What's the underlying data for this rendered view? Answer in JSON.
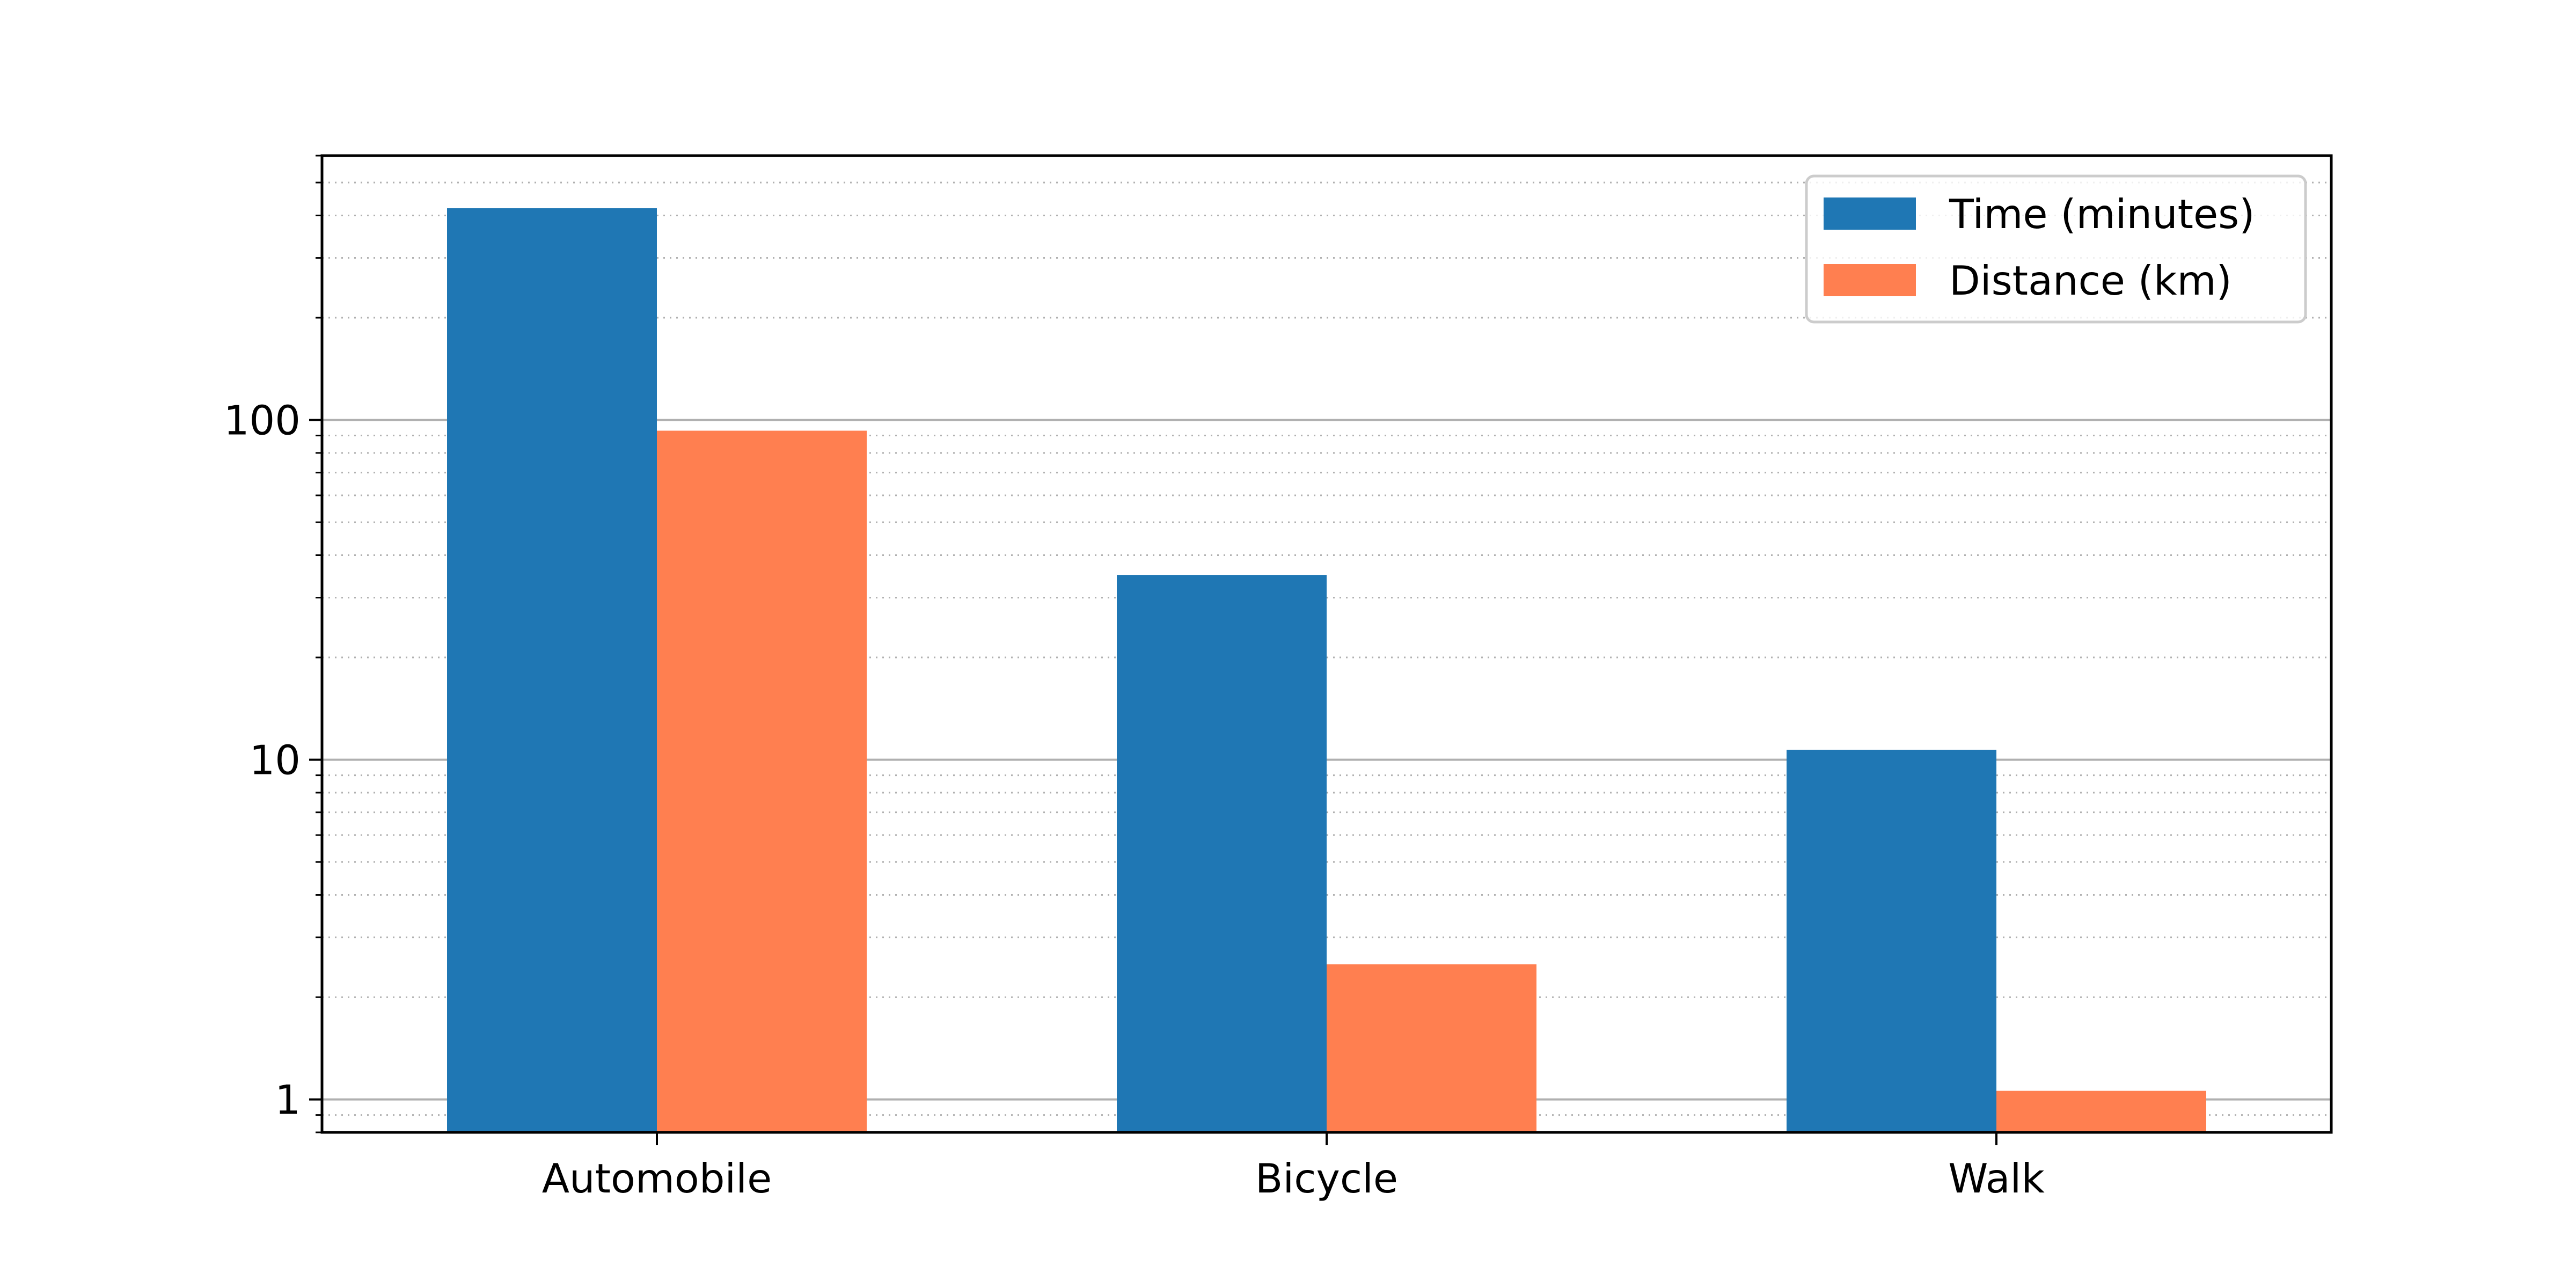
{
  "chart_data": {
    "type": "bar",
    "title": "",
    "xlabel": "",
    "ylabel": "",
    "yscale": "log",
    "ylim": [
      0.8,
      600
    ],
    "categories": [
      "Automobile",
      "Bicycle",
      "Walk"
    ],
    "series": [
      {
        "name": "Time (minutes)",
        "color": "#1f77b4",
        "values": [
          420,
          35,
          10.7
        ]
      },
      {
        "name": "Distance (km)",
        "color": "#ff7f50",
        "values": [
          93,
          2.5,
          1.06
        ]
      }
    ],
    "y_ticks": [
      {
        "value": 1,
        "label": "1"
      },
      {
        "value": 10,
        "label": "10"
      },
      {
        "value": 100,
        "label": "100"
      }
    ],
    "grid": {
      "major": true,
      "minor": true
    },
    "legend_position": "top-right"
  }
}
